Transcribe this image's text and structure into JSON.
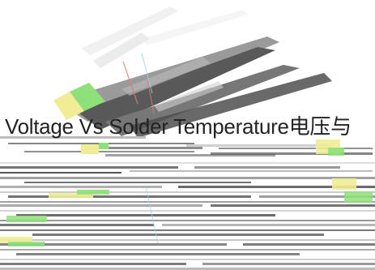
{
  "headline": "Voltage Vs Solder Temperature电压与",
  "colors": {
    "background": "#ffffff",
    "headline_text": "#222222",
    "blade_dark": "#595959",
    "blade_mid": "#9a9a9a",
    "blade_light": "#d6d6d6",
    "accent_green": "#8ee07a",
    "accent_yellow": "#f1ec95",
    "accent_red": "#e07b7b"
  }
}
